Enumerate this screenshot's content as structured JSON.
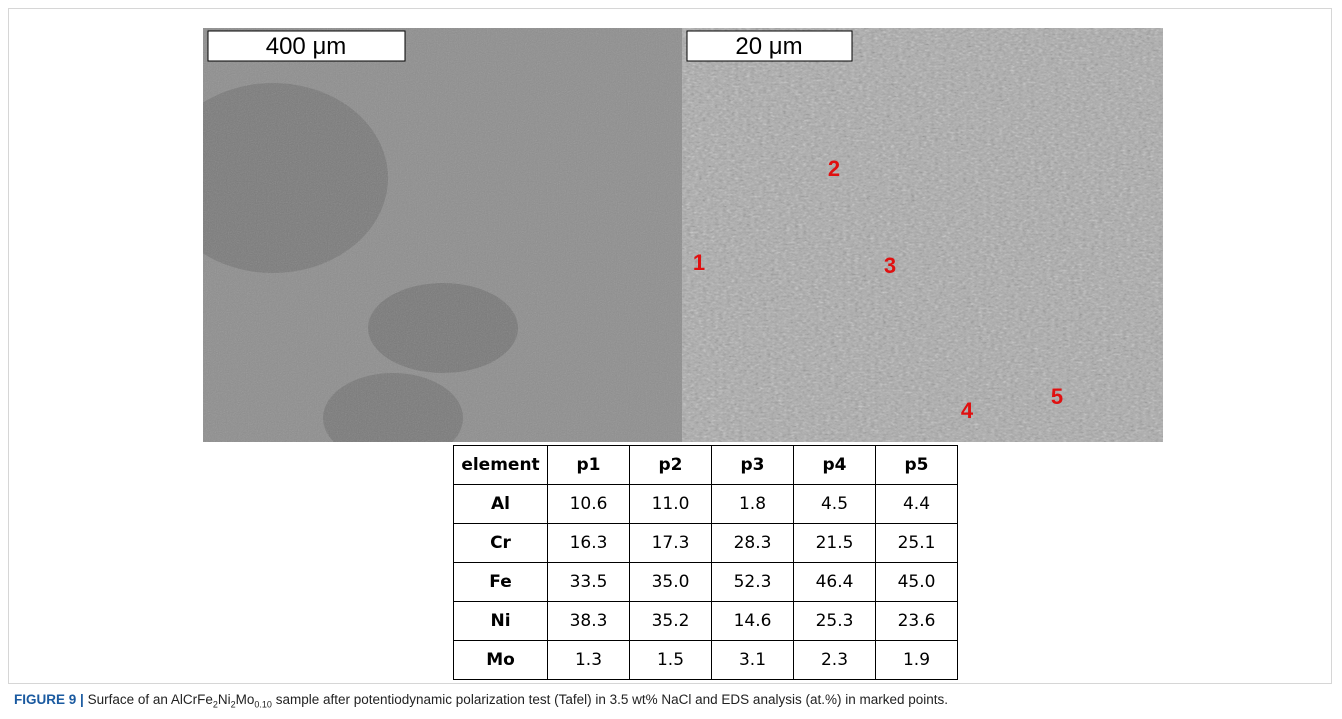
{
  "figure": {
    "images": [
      {
        "scale_bar": "400 μm"
      },
      {
        "scale_bar": "20 μm",
        "points": [
          "1",
          "2",
          "3",
          "4",
          "5"
        ]
      }
    ],
    "table": {
      "header": [
        "element",
        "p1",
        "p2",
        "p3",
        "p4",
        "p5"
      ],
      "rows": [
        [
          "Al",
          "10.6",
          "11.0",
          "1.8",
          "4.5",
          "4.4"
        ],
        [
          "Cr",
          "16.3",
          "17.3",
          "28.3",
          "21.5",
          "25.1"
        ],
        [
          "Fe",
          "33.5",
          "35.0",
          "52.3",
          "46.4",
          "45.0"
        ],
        [
          "Ni",
          "38.3",
          "35.2",
          "14.6",
          "25.3",
          "23.6"
        ],
        [
          "Mo",
          "1.3",
          "1.5",
          "3.1",
          "2.3",
          "1.9"
        ]
      ]
    },
    "caption": {
      "label": "FIGURE 9 |",
      "parts": [
        "Surface of an AlCrFe",
        "2",
        "Ni",
        "2",
        "Mo",
        "0.10",
        " sample after potentiodynamic polarization test (Tafel) in 3.5 wt% NaCl and EDS analysis (at.%) in marked points."
      ]
    }
  }
}
